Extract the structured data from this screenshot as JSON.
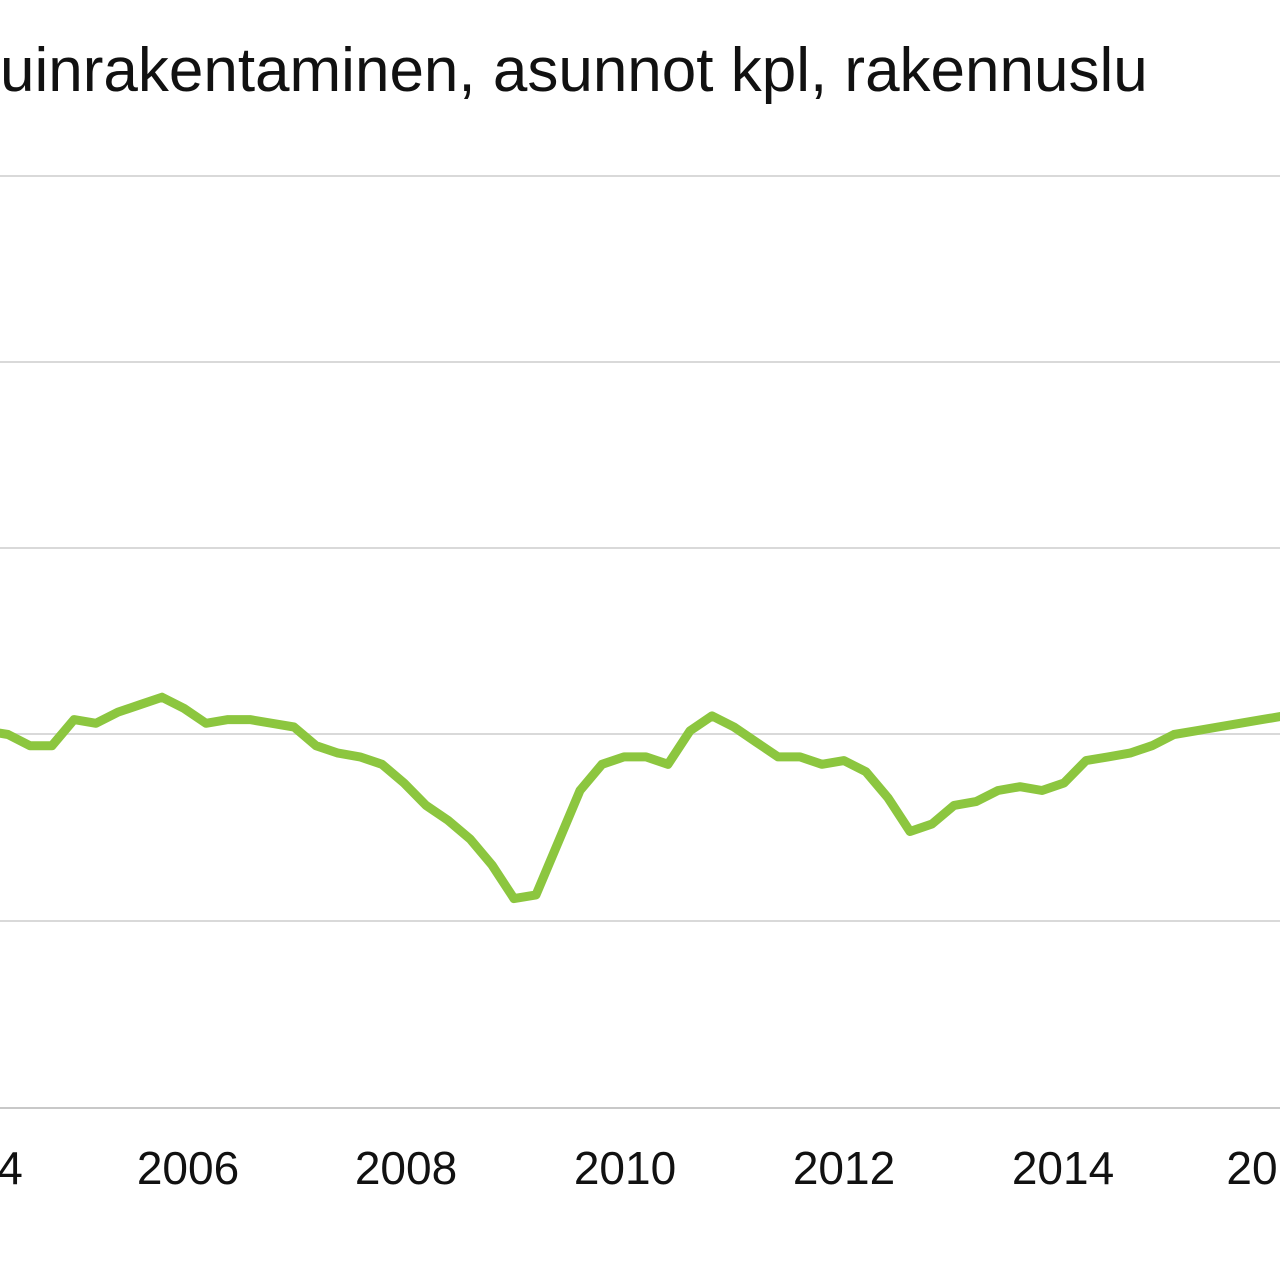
{
  "chart_data": {
    "type": "line",
    "title": "uinrakentaminen, asunnot kpl, rakennuslu",
    "xlabel": "",
    "ylabel": "",
    "grid": true,
    "x_tick_labels": [
      "4",
      "2006",
      "2008",
      "2010",
      "2012",
      "2014",
      "20"
    ],
    "series": [
      {
        "color": "#8cc63f",
        "x": [
          2004.0,
          2004.2,
          2004.4,
          2004.6,
          2004.8,
          2005.0,
          2005.2,
          2005.4,
          2005.6,
          2005.8,
          2006.0,
          2006.2,
          2006.4,
          2006.6,
          2006.8,
          2007.0,
          2007.2,
          2007.4,
          2007.6,
          2007.8,
          2008.0,
          2008.2,
          2008.4,
          2008.6,
          2008.8,
          2009.0,
          2009.2,
          2009.4,
          2009.6,
          2009.8,
          2010.0,
          2010.2,
          2010.4,
          2010.6,
          2010.8,
          2011.0,
          2011.2,
          2011.4,
          2011.6,
          2011.8,
          2012.0,
          2012.2,
          2012.4,
          2012.6,
          2012.8,
          2013.0,
          2013.2,
          2013.4,
          2013.6,
          2013.8,
          2014.0,
          2014.2,
          2014.4,
          2014.6,
          2014.8,
          2015.0,
          2015.2,
          2015.4,
          2015.6,
          2015.8,
          2016.0,
          2016.2,
          2016.4
        ],
        "y": [
          0.5,
          0.51,
          0.5,
          0.47,
          0.47,
          0.54,
          0.53,
          0.56,
          0.58,
          0.6,
          0.57,
          0.53,
          0.54,
          0.54,
          0.53,
          0.52,
          0.47,
          0.45,
          0.44,
          0.42,
          0.37,
          0.31,
          0.27,
          0.22,
          0.15,
          0.06,
          0.07,
          0.21,
          0.35,
          0.42,
          0.44,
          0.44,
          0.42,
          0.51,
          0.55,
          0.52,
          0.48,
          0.44,
          0.44,
          0.42,
          0.43,
          0.4,
          0.33,
          0.24,
          0.26,
          0.31,
          0.32,
          0.35,
          0.36,
          0.35,
          0.37,
          0.43,
          0.44,
          0.45,
          0.47,
          0.5,
          0.51,
          0.52,
          0.53,
          0.54,
          0.55,
          0.56,
          0.57
        ]
      }
    ]
  }
}
